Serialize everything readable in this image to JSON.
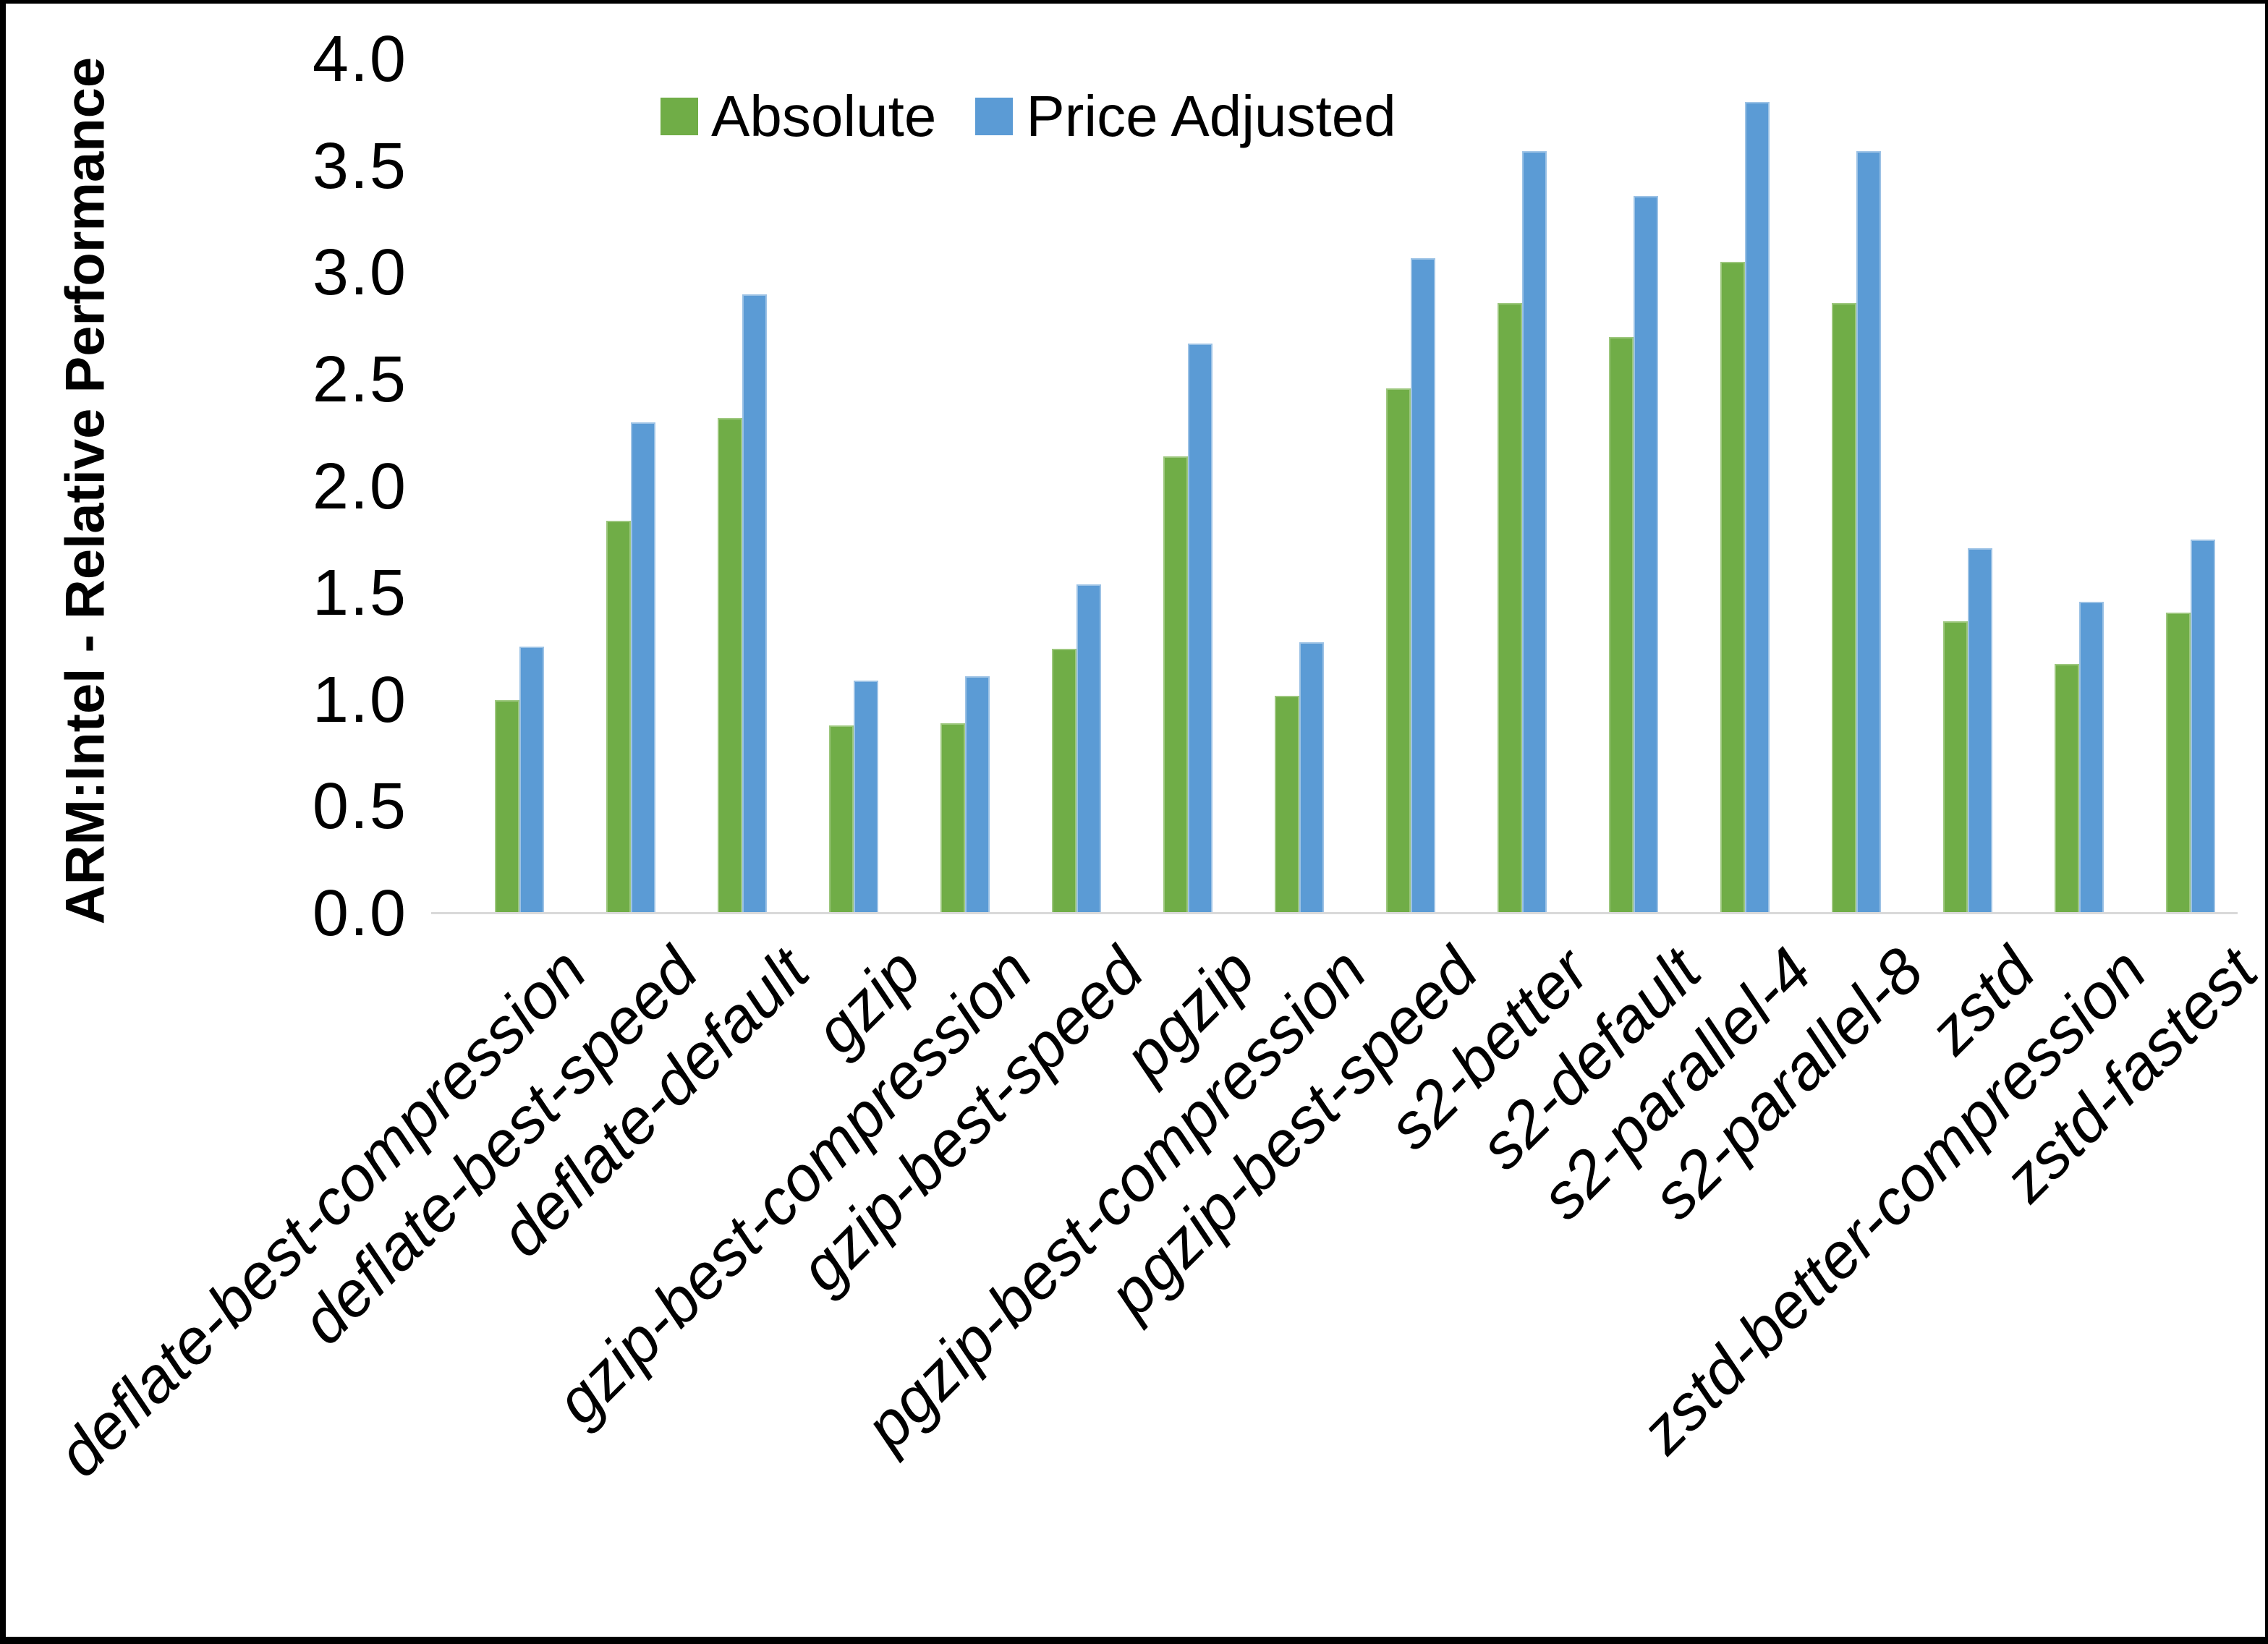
{
  "chart_data": {
    "type": "bar",
    "title": "",
    "ylabel": "ARM:Intel - Relative Performance",
    "xlabel": "",
    "ylim": [
      0.0,
      4.0
    ],
    "ytick_labels": [
      "0.0",
      "0.5",
      "1.0",
      "1.5",
      "2.0",
      "2.5",
      "3.0",
      "3.5",
      "4.0"
    ],
    "grid": false,
    "legend_position": "top-center",
    "categories": [
      "deflate-best-compression",
      "deflate-best-speed",
      "deflate-default",
      "gzip",
      "gzip-best-compression",
      "gzip-best-speed",
      "pgzip",
      "pgzip-best-compression",
      "pgzip-best-speed",
      "s2-better",
      "s2-default",
      "s2-parallel-4",
      "s2-parallel-8",
      "zstd",
      "zstd-better-compression",
      "zstd-fastest"
    ],
    "series": [
      {
        "name": "Absolute",
        "color": "#70AD47",
        "values": [
          1.0,
          1.84,
          2.32,
          0.88,
          0.89,
          1.24,
          2.14,
          1.02,
          2.46,
          2.86,
          2.7,
          3.05,
          2.86,
          1.37,
          1.17,
          1.41
        ]
      },
      {
        "name": "Price Adjusted",
        "color": "#5B9BD5",
        "values": [
          1.25,
          2.3,
          2.9,
          1.09,
          1.11,
          1.54,
          2.67,
          1.27,
          3.07,
          3.57,
          3.36,
          3.8,
          3.57,
          1.71,
          1.46,
          1.75
        ]
      }
    ]
  },
  "colors": {
    "absolute_bar": "#70AD47",
    "price_adjusted_bar": "#5B9BD5",
    "axis_line": "#D9D9D9",
    "text": "#000000",
    "frame_border": "#000000",
    "background": "#FFFFFF"
  }
}
